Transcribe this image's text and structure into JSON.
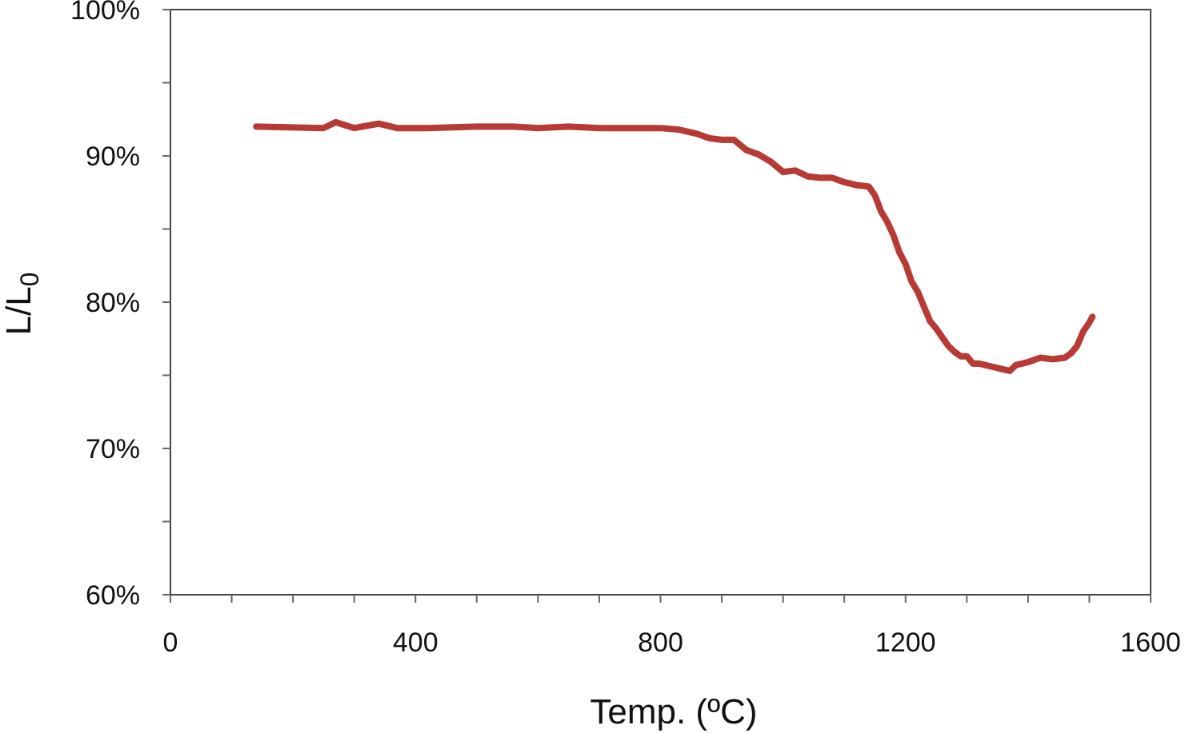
{
  "chart_data": {
    "type": "line",
    "title": "",
    "xlabel": "Temp. (ºC)",
    "ylabel": {
      "main": "L/L",
      "subscript": "0"
    },
    "xlim": [
      0,
      1600
    ],
    "ylim": [
      0.6,
      1.0
    ],
    "x_ticks": [
      0,
      400,
      800,
      1200,
      1600
    ],
    "x_tick_labels": [
      "0",
      "400",
      "800",
      "1200",
      "1600"
    ],
    "x_minor_step": 100,
    "y_ticks": [
      0.6,
      0.7,
      0.8,
      0.9,
      1.0
    ],
    "y_tick_labels": [
      "60%",
      "70%",
      "80%",
      "90%",
      "100%"
    ],
    "y_minor_step": 0.05,
    "grid": false,
    "legend": "none",
    "series": [
      {
        "color": "#b83a35",
        "x": [
          140,
          250,
          270,
          300,
          340,
          370,
          420,
          500,
          560,
          600,
          650,
          700,
          750,
          800,
          830,
          860,
          880,
          900,
          920,
          940,
          960,
          980,
          1000,
          1020,
          1040,
          1060,
          1080,
          1100,
          1120,
          1140,
          1150,
          1160,
          1170,
          1180,
          1190,
          1200,
          1210,
          1220,
          1230,
          1240,
          1250,
          1260,
          1270,
          1280,
          1290,
          1300,
          1310,
          1320,
          1340,
          1360,
          1370,
          1380,
          1400,
          1420,
          1440,
          1460,
          1470,
          1480,
          1490,
          1500,
          1505
        ],
        "y": [
          0.92,
          0.919,
          0.923,
          0.919,
          0.922,
          0.919,
          0.919,
          0.92,
          0.92,
          0.919,
          0.92,
          0.919,
          0.919,
          0.919,
          0.918,
          0.915,
          0.912,
          0.911,
          0.911,
          0.904,
          0.901,
          0.896,
          0.889,
          0.89,
          0.886,
          0.885,
          0.885,
          0.882,
          0.88,
          0.879,
          0.873,
          0.862,
          0.855,
          0.846,
          0.834,
          0.826,
          0.814,
          0.807,
          0.797,
          0.787,
          0.782,
          0.776,
          0.77,
          0.766,
          0.763,
          0.763,
          0.758,
          0.758,
          0.756,
          0.754,
          0.753,
          0.757,
          0.759,
          0.762,
          0.761,
          0.762,
          0.765,
          0.77,
          0.78,
          0.786,
          0.79
        ]
      }
    ]
  }
}
